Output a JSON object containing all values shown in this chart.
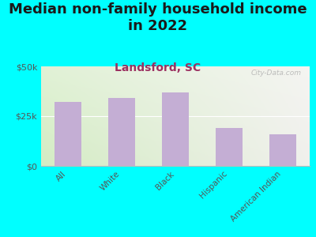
{
  "title": "Median non-family household income\nin 2022",
  "subtitle": "Landsford, SC",
  "categories": [
    "All",
    "White",
    "Black",
    "Hispanic",
    "American Indian"
  ],
  "values": [
    32000,
    34000,
    37000,
    19000,
    16000
  ],
  "bar_color": "#c4aed4",
  "background_color": "#00ffff",
  "chart_bg_left": "#d4ecc4",
  "chart_bg_right": "#f0f0ec",
  "ylim": [
    0,
    50000
  ],
  "ytick_labels": [
    "$0",
    "$25k",
    "$50k"
  ],
  "ytick_values": [
    0,
    25000,
    50000
  ],
  "title_fontsize": 13,
  "subtitle_fontsize": 10,
  "subtitle_color": "#9b3060",
  "title_color": "#1a1a1a",
  "tick_color": "#555555",
  "watermark": "City-Data.com"
}
